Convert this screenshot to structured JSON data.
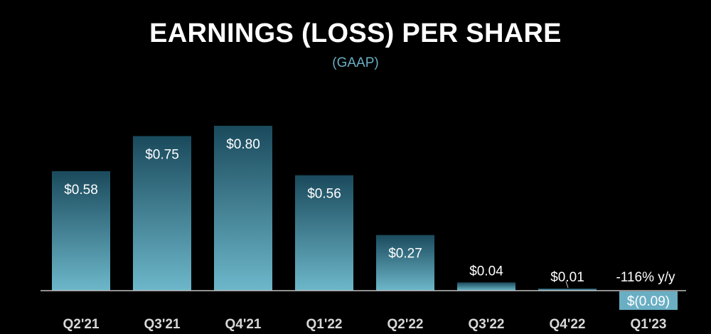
{
  "chart_data": {
    "type": "bar",
    "title": "EARNINGS (LOSS) PER SHARE",
    "subtitle": "(GAAP)",
    "categories": [
      "Q2'21",
      "Q3'21",
      "Q4'21",
      "Q1'22",
      "Q2'22",
      "Q3'22",
      "Q4'22",
      "Q1'23"
    ],
    "values": [
      0.58,
      0.75,
      0.8,
      0.56,
      0.27,
      0.04,
      0.01,
      -0.09
    ],
    "value_labels": [
      "$0.58",
      "$0.75",
      "$0.80",
      "$0.56",
      "$0.27",
      "$0.04",
      "$0.01",
      "$(0.09)"
    ],
    "annotation": "-116% y/y",
    "colors": {
      "bar_top": "#1a4a5c",
      "bar_bottom": "#6db7ca",
      "negative_bar": "#6aaec4",
      "axis": "#bfbfbf"
    },
    "grid": false,
    "xlabel": "",
    "ylabel": ""
  }
}
